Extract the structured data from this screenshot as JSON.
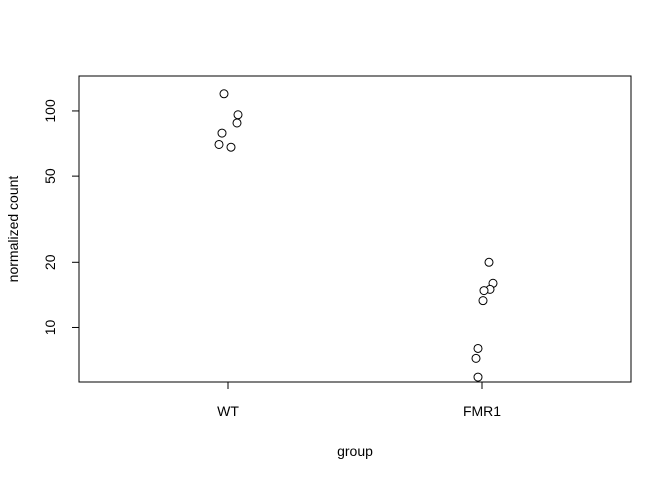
{
  "chart_data": {
    "type": "scatter",
    "title": "",
    "xlabel": "group",
    "ylabel": "normalized count",
    "categories": [
      "WT",
      "FMR1"
    ],
    "y_scale": "log",
    "ylim": [
      5.6,
      145
    ],
    "yticks": [
      10,
      20,
      50,
      100
    ],
    "ytick_labels": [
      "10",
      "20",
      "50",
      "100"
    ],
    "grid": false,
    "legend": "none",
    "series": [
      {
        "category": "WT",
        "points": [
          {
            "x": "WT",
            "y": 120
          },
          {
            "x": "WT",
            "y": 96
          },
          {
            "x": "WT",
            "y": 88
          },
          {
            "x": "WT",
            "y": 79
          },
          {
            "x": "WT",
            "y": 70
          },
          {
            "x": "WT",
            "y": 68
          }
        ]
      },
      {
        "category": "FMR1",
        "points": [
          {
            "x": "FMR1",
            "y": 20
          },
          {
            "x": "FMR1",
            "y": 16
          },
          {
            "x": "FMR1",
            "y": 15
          },
          {
            "x": "FMR1",
            "y": 14.8
          },
          {
            "x": "FMR1",
            "y": 13.3
          },
          {
            "x": "FMR1",
            "y": 8
          },
          {
            "x": "FMR1",
            "y": 7.2
          },
          {
            "x": "FMR1",
            "y": 5.9
          }
        ]
      }
    ],
    "colors": {
      "marker_stroke": "#000000",
      "marker_fill": "#ffffff",
      "axis": "#000000"
    }
  }
}
